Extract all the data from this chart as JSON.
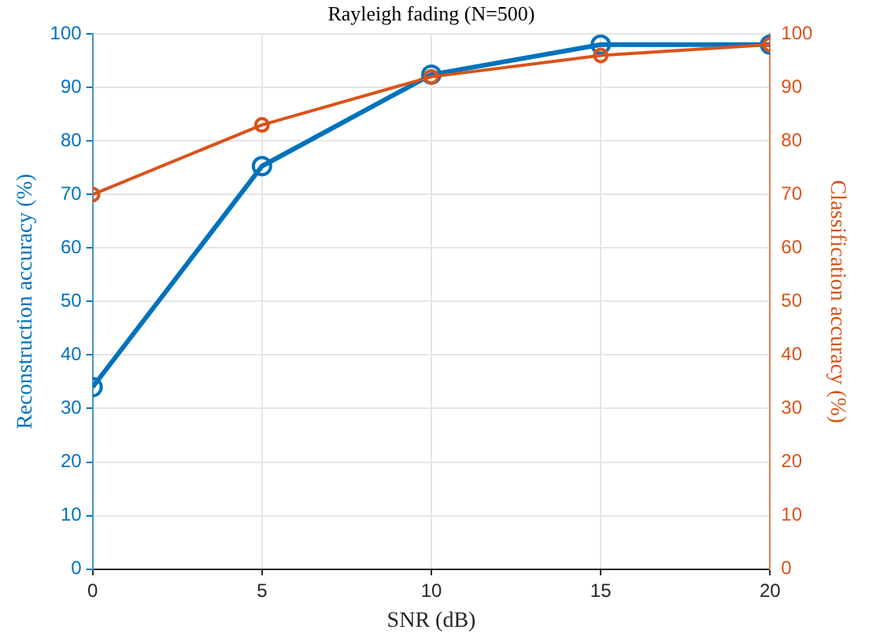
{
  "chart_data": {
    "type": "line",
    "title": "Rayleigh fading (N=500)",
    "xlabel": "SNR (dB)",
    "ylabel": "Reconstruction accuracy (%)",
    "y2label": "Classification accuracy (%)",
    "x": [
      0,
      5,
      10,
      15,
      20
    ],
    "series": [
      {
        "color": "#0072bd",
        "values": [
          34,
          75.3,
          92.4,
          98,
          98
        ]
      },
      {
        "color": "#d95319",
        "axis": "y2",
        "values": [
          70,
          83,
          92,
          96,
          98
        ]
      }
    ],
    "xlim": [
      0,
      20
    ],
    "xticks": [
      0,
      5,
      10,
      15,
      20
    ],
    "ylim": [
      0,
      100
    ],
    "yticks": [
      0,
      10,
      20,
      30,
      40,
      50,
      60,
      70,
      80,
      90,
      100
    ],
    "y2lim": [
      0,
      100
    ],
    "y2ticks": [
      0,
      10,
      20,
      30,
      40,
      50,
      60,
      70,
      80,
      90,
      100
    ],
    "grid": true,
    "legend": false,
    "marker": "circle",
    "line_style": "solid"
  }
}
